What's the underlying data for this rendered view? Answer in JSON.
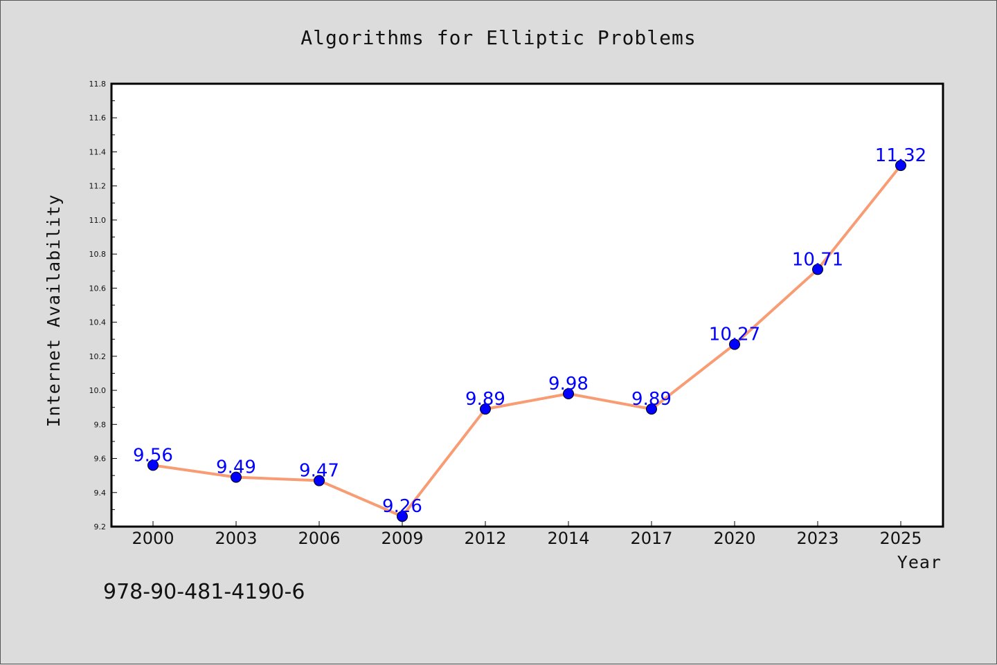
{
  "chart_data": {
    "type": "line",
    "title": "Algorithms for Elliptic Problems",
    "xlabel": "Year",
    "ylabel": "Internet Availability",
    "categories": [
      "2000",
      "2003",
      "2006",
      "2009",
      "2012",
      "2014",
      "2017",
      "2020",
      "2023",
      "2025"
    ],
    "series": [
      {
        "values": [
          9.56,
          9.49,
          9.47,
          9.26,
          9.89,
          9.98,
          9.89,
          10.27,
          10.71,
          11.32
        ],
        "line_color": "#f89c74",
        "marker_color": "#0000ff"
      }
    ],
    "data_labels": [
      "9.56",
      "9.49",
      "9.47",
      "9.26",
      "9.89",
      "9.98",
      "9.89",
      "10.27",
      "10.71",
      "11.32"
    ],
    "ylim": [
      9.2,
      11.8
    ],
    "yticks": [
      "9.2",
      "9.4",
      "9.6",
      "9.8",
      "10.0",
      "10.2",
      "10.4",
      "10.6",
      "10.8",
      "11.0",
      "11.2",
      "11.4",
      "11.6",
      "11.8"
    ],
    "grid": false,
    "legend": "none"
  },
  "footer": {
    "isbn": "978-90-481-4190-6"
  },
  "colors": {
    "background": "#dcdcdc",
    "plot_background": "#ffffff",
    "axis": "#000000"
  }
}
